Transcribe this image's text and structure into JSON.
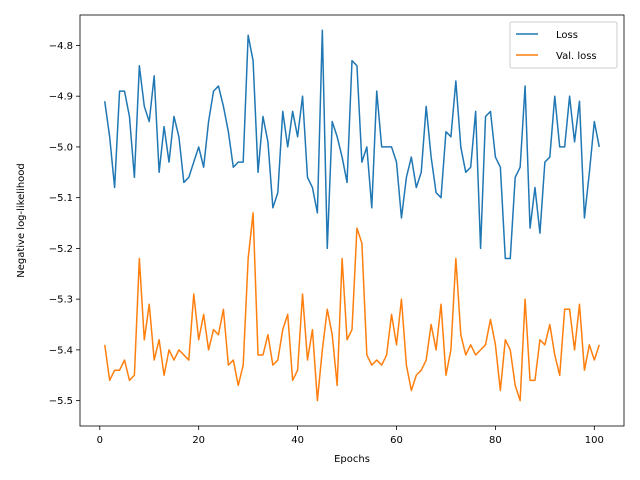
{
  "chart_data": {
    "type": "line",
    "title": "",
    "xlabel": "Epochs",
    "ylabel": "Negative log-likelihood",
    "xlim": [
      -4,
      106
    ],
    "ylim": [
      -5.55,
      -4.74
    ],
    "xticks": [
      0,
      20,
      40,
      60,
      80,
      100
    ],
    "yticks": [
      -5.5,
      -5.4,
      -5.3,
      -5.2,
      -5.1,
      -5.0,
      -4.9,
      -4.8
    ],
    "ytick_labels": [
      "−5.5",
      "−5.4",
      "−5.3",
      "−5.2",
      "−5.1",
      "−5.0",
      "−4.9",
      "−4.8"
    ],
    "xtick_labels": [
      "0",
      "20",
      "40",
      "60",
      "80",
      "100"
    ],
    "grid": false,
    "legend_position": "top-right",
    "x": [
      1,
      2,
      3,
      4,
      5,
      6,
      7,
      8,
      9,
      10,
      11,
      12,
      13,
      14,
      15,
      16,
      17,
      18,
      19,
      20,
      21,
      22,
      23,
      24,
      25,
      26,
      27,
      28,
      29,
      30,
      31,
      32,
      33,
      34,
      35,
      36,
      37,
      38,
      39,
      40,
      41,
      42,
      43,
      44,
      45,
      46,
      47,
      48,
      49,
      50,
      51,
      52,
      53,
      54,
      55,
      56,
      57,
      58,
      59,
      60,
      61,
      62,
      63,
      64,
      65,
      66,
      67,
      68,
      69,
      70,
      71,
      72,
      73,
      74,
      75,
      76,
      77,
      78,
      79,
      80,
      81,
      82,
      83,
      84,
      85,
      86,
      87,
      88,
      89,
      90,
      91,
      92,
      93,
      94,
      95,
      96,
      97,
      98,
      99,
      100,
      101
    ],
    "series": [
      {
        "name": "Loss",
        "color": "#1f77b4",
        "values": [
          -4.91,
          -4.98,
          -5.08,
          -4.89,
          -4.89,
          -4.94,
          -5.06,
          -4.84,
          -4.92,
          -4.95,
          -4.86,
          -5.05,
          -4.96,
          -5.03,
          -4.94,
          -4.98,
          -5.07,
          -5.06,
          -5.03,
          -5.0,
          -5.04,
          -4.95,
          -4.89,
          -4.88,
          -4.92,
          -4.97,
          -5.04,
          -5.03,
          -5.03,
          -4.78,
          -4.83,
          -5.05,
          -4.94,
          -4.99,
          -5.12,
          -5.09,
          -4.93,
          -5.0,
          -4.93,
          -4.98,
          -4.9,
          -5.06,
          -5.08,
          -5.13,
          -4.77,
          -5.2,
          -4.95,
          -4.98,
          -5.02,
          -5.07,
          -4.83,
          -4.84,
          -5.03,
          -5.0,
          -5.12,
          -4.89,
          -5.0,
          -5.0,
          -5.0,
          -5.03,
          -5.14,
          -5.06,
          -5.02,
          -5.08,
          -5.05,
          -4.92,
          -5.02,
          -5.09,
          -5.1,
          -4.97,
          -4.98,
          -4.87,
          -5.0,
          -5.05,
          -5.04,
          -4.93,
          -5.2,
          -4.94,
          -4.93,
          -5.02,
          -5.04,
          -5.22,
          -5.22,
          -5.06,
          -5.04,
          -4.88,
          -5.16,
          -5.08,
          -5.17,
          -5.03,
          -5.02,
          -4.9,
          -5.0,
          -5.0,
          -4.9,
          -4.99,
          -4.91,
          -5.14,
          -5.05,
          -4.95,
          -5.0
        ]
      },
      {
        "name": "Val. loss",
        "color": "#ff7f0e",
        "values": [
          -5.39,
          -5.46,
          -5.44,
          -5.44,
          -5.42,
          -5.46,
          -5.45,
          -5.22,
          -5.38,
          -5.31,
          -5.42,
          -5.38,
          -5.45,
          -5.4,
          -5.42,
          -5.4,
          -5.41,
          -5.42,
          -5.29,
          -5.38,
          -5.33,
          -5.4,
          -5.36,
          -5.37,
          -5.32,
          -5.43,
          -5.42,
          -5.47,
          -5.43,
          -5.22,
          -5.13,
          -5.41,
          -5.41,
          -5.37,
          -5.43,
          -5.42,
          -5.36,
          -5.33,
          -5.46,
          -5.44,
          -5.29,
          -5.42,
          -5.36,
          -5.5,
          -5.4,
          -5.32,
          -5.37,
          -5.47,
          -5.22,
          -5.38,
          -5.36,
          -5.16,
          -5.19,
          -5.41,
          -5.43,
          -5.42,
          -5.43,
          -5.41,
          -5.33,
          -5.39,
          -5.3,
          -5.43,
          -5.48,
          -5.45,
          -5.44,
          -5.42,
          -5.35,
          -5.4,
          -5.31,
          -5.45,
          -5.4,
          -5.22,
          -5.37,
          -5.41,
          -5.39,
          -5.41,
          -5.4,
          -5.39,
          -5.34,
          -5.39,
          -5.48,
          -5.38,
          -5.4,
          -5.47,
          -5.5,
          -5.3,
          -5.46,
          -5.46,
          -5.38,
          -5.39,
          -5.35,
          -5.41,
          -5.45,
          -5.32,
          -5.32,
          -5.4,
          -5.31,
          -5.44,
          -5.39,
          -5.42,
          -5.39
        ]
      }
    ]
  }
}
